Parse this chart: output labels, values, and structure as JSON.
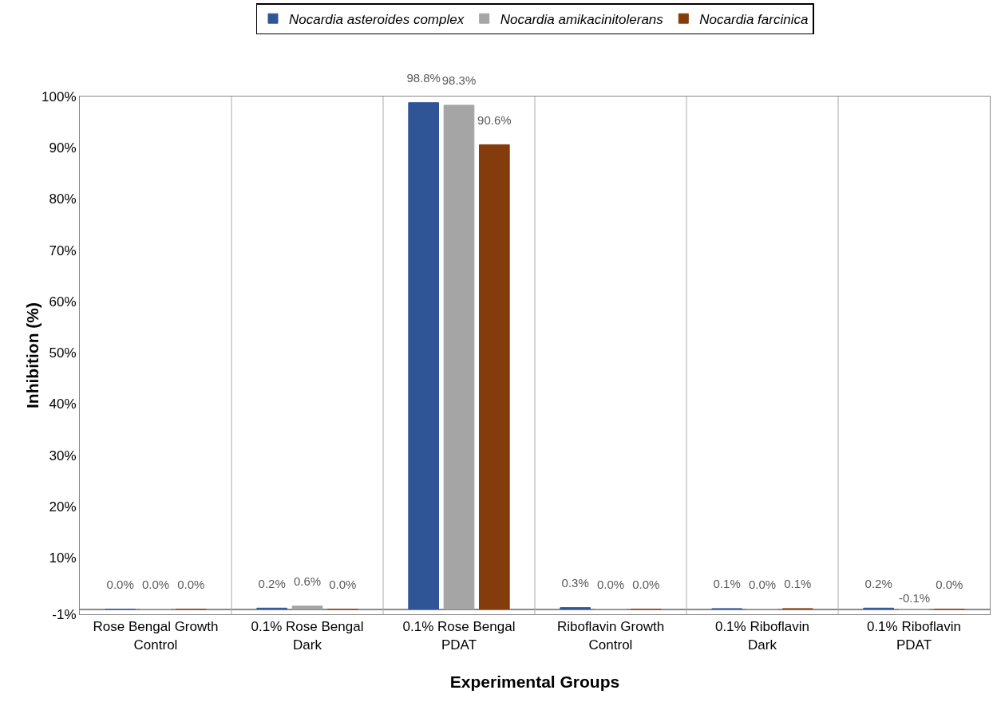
{
  "chart_data": {
    "type": "bar",
    "xlabel": "Experimental Groups",
    "ylabel": "Inhibition (%)",
    "categories": [
      "Rose Bengal Growth Control",
      "0.1% Rose Bengal Dark",
      "0.1% Rose Bengal PDAT",
      "Riboflavin Growth Control",
      "0.1% Riboflavin Dark",
      "0.1% Riboflavin PDAT"
    ],
    "series": [
      {
        "name": "Nocardia asteroides complex",
        "color": "#2f5597",
        "values": [
          0.0,
          0.2,
          98.8,
          0.3,
          0.1,
          0.2
        ],
        "value_labels": [
          "0.0%",
          "0.2%",
          "98.8%",
          "0.3%",
          "0.1%",
          "0.2%"
        ]
      },
      {
        "name": "Nocardia amikacinitolerans",
        "color": "#a5a5a5",
        "values": [
          0.0,
          0.6,
          98.3,
          0.0,
          0.0,
          -0.1
        ],
        "value_labels": [
          "0.0%",
          "0.6%",
          "98.3%",
          "0.0%",
          "0.0%",
          "-0.1%"
        ]
      },
      {
        "name": "Nocardia farcinica",
        "color": "#843c0c",
        "values": [
          0.0,
          0.0,
          90.6,
          0.0,
          0.1,
          0.0
        ],
        "value_labels": [
          "0.0%",
          "0.0%",
          "90.6%",
          "0.0%",
          "0.1%",
          "0.0%"
        ]
      }
    ],
    "ylim": [
      -1,
      100
    ],
    "yticks": [
      {
        "value": -1,
        "label": "-1%"
      },
      {
        "value": 10,
        "label": "10%"
      },
      {
        "value": 20,
        "label": "20%"
      },
      {
        "value": 30,
        "label": "30%"
      },
      {
        "value": 40,
        "label": "40%"
      },
      {
        "value": 50,
        "label": "50%"
      },
      {
        "value": 60,
        "label": "60%"
      },
      {
        "value": 70,
        "label": "70%"
      },
      {
        "value": 80,
        "label": "80%"
      },
      {
        "value": 90,
        "label": "90%"
      },
      {
        "value": 100,
        "label": "100%"
      }
    ],
    "grid": "x",
    "legend": "top"
  }
}
